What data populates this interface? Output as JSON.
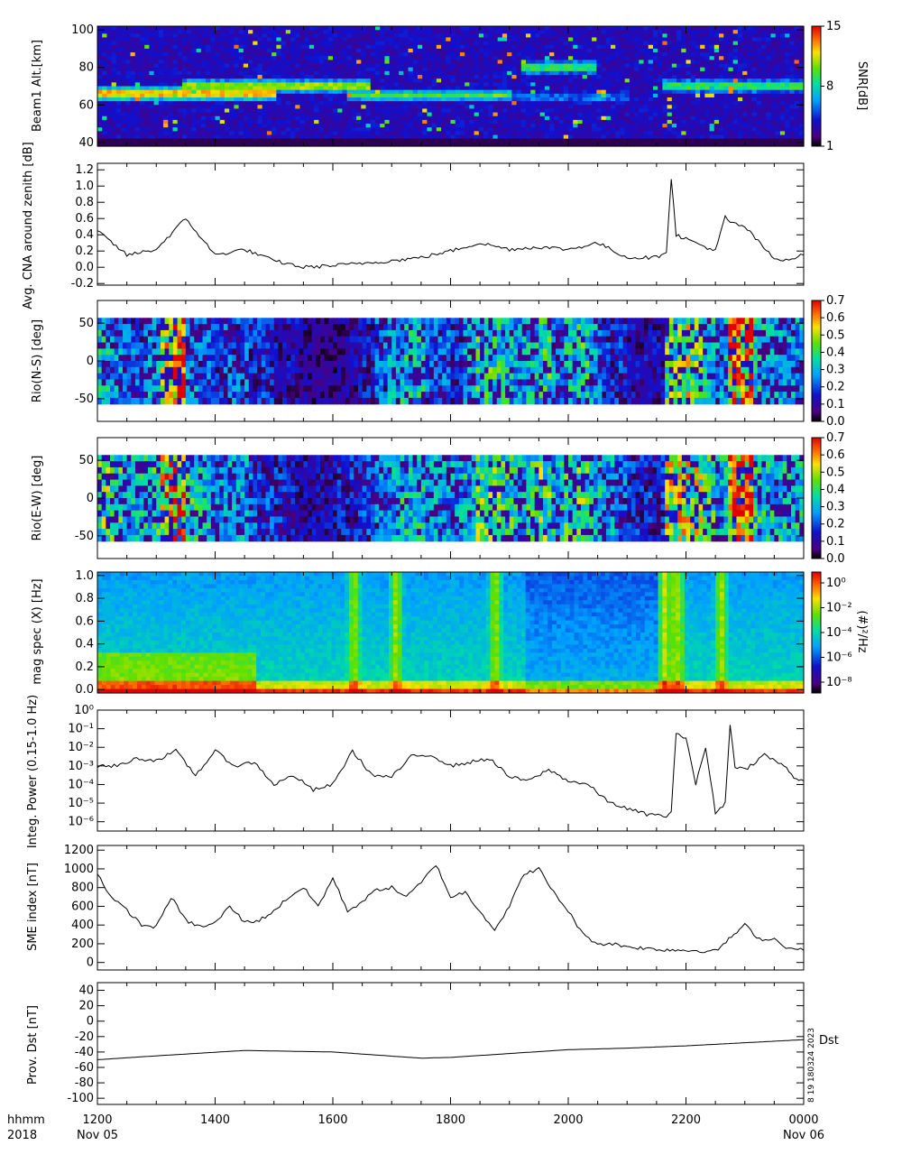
{
  "time_axis": {
    "ticks": [
      "1200",
      "1400",
      "1600",
      "1800",
      "2000",
      "2200",
      "0000"
    ],
    "row_label_1": "hhmm",
    "row_label_2": "2018",
    "start_date": "Nov 05",
    "end_date": "Nov 06"
  },
  "side_note": "8 19 180324 2023",
  "chart_data": [
    {
      "type": "heatmap",
      "ylabel": "Beam1 Alt.[km]",
      "yticks": [
        "100",
        "80",
        "60",
        "40"
      ],
      "ylim": [
        38,
        102
      ],
      "colorbar": {
        "label": "SNR[dB]",
        "ticks": [
          "15",
          "8",
          "1"
        ],
        "range": [
          1,
          15
        ],
        "scale": "linear",
        "colormap": "rainbow"
      },
      "bands": [
        {
          "t_start": 0.0,
          "t_end": 0.25,
          "alt": 66,
          "level": 0.9
        },
        {
          "t_start": 0.12,
          "t_end": 0.38,
          "alt": 70,
          "level": 0.75
        },
        {
          "t_start": 0.35,
          "t_end": 0.58,
          "alt": 65,
          "level": 0.55
        },
        {
          "t_start": 0.58,
          "t_end": 0.75,
          "alt": 64,
          "level": 0.3
        },
        {
          "t_start": 0.8,
          "t_end": 1.0,
          "alt": 70,
          "level": 0.6
        },
        {
          "t_start": 0.6,
          "t_end": 0.7,
          "alt": 80,
          "level": 0.6
        }
      ]
    },
    {
      "type": "line",
      "ylabel": "Avg. CNA around zenith [dB]",
      "ylim": [
        -0.22,
        1.28
      ],
      "yticks": [
        "1.2",
        "1.0",
        "0.8",
        "0.6",
        "0.4",
        "0.2",
        "0.0",
        "-0.2"
      ],
      "series": [
        {
          "x": [
            "1200",
            "1230",
            "1300",
            "1330",
            "1400",
            "1430",
            "1500",
            "1530",
            "1600",
            "1630",
            "1700",
            "1730",
            "1800",
            "1830",
            "1900",
            "1930",
            "2000",
            "2030",
            "2100",
            "2130",
            "2140",
            "2145",
            "2150",
            "2200",
            "2230",
            "2240",
            "2245",
            "2300",
            "2330",
            "2345",
            "2400"
          ],
          "y": [
            0.45,
            0.15,
            0.22,
            0.6,
            0.15,
            0.22,
            0.08,
            0.0,
            0.02,
            0.05,
            0.08,
            0.12,
            0.2,
            0.3,
            0.22,
            0.25,
            0.22,
            0.3,
            0.12,
            0.12,
            0.2,
            1.1,
            0.4,
            0.35,
            0.2,
            0.62,
            0.55,
            0.5,
            0.1,
            0.1,
            0.15
          ]
        }
      ]
    },
    {
      "type": "heatmap",
      "ylabel": "Rio(N-S) [deg]",
      "yticks": [
        "50",
        "0",
        "-50"
      ],
      "ylim": [
        -80,
        80
      ],
      "colorbar": {
        "ticks": [
          "0.7",
          "0.6",
          "0.5",
          "0.4",
          "0.3",
          "0.2",
          "0.1",
          "0.0"
        ],
        "range": [
          0,
          0.7
        ],
        "scale": "linear",
        "colormap": "rainbow"
      },
      "activity": [
        0.35,
        0.3,
        0.25,
        0.25,
        0.3,
        0.55,
        0.7,
        0.3,
        0.25,
        0.2,
        0.25,
        0.25,
        0.2,
        0.2,
        0.15,
        0.15,
        0.12,
        0.1,
        0.1,
        0.12,
        0.15,
        0.18,
        0.25,
        0.3,
        0.35,
        0.35,
        0.25,
        0.25,
        0.2,
        0.3,
        0.4,
        0.4,
        0.35,
        0.3,
        0.35,
        0.4,
        0.3,
        0.35,
        0.4,
        0.3,
        0.2,
        0.2,
        0.15,
        0.15,
        0.15,
        0.45,
        0.5,
        0.45,
        0.35,
        0.3,
        0.7,
        0.65,
        0.35,
        0.3,
        0.3,
        0.3
      ]
    },
    {
      "type": "heatmap",
      "ylabel": "Rio(E-W) [deg]",
      "yticks": [
        "50",
        "0",
        "-50"
      ],
      "ylim": [
        -80,
        80
      ],
      "colorbar": {
        "ticks": [
          "0.7",
          "0.6",
          "0.5",
          "0.4",
          "0.3",
          "0.2",
          "0.1",
          "0.0"
        ],
        "range": [
          0,
          0.7
        ],
        "scale": "linear",
        "colormap": "rainbow"
      },
      "activity": [
        0.45,
        0.4,
        0.35,
        0.35,
        0.4,
        0.6,
        0.7,
        0.4,
        0.35,
        0.3,
        0.3,
        0.3,
        0.25,
        0.22,
        0.2,
        0.18,
        0.15,
        0.15,
        0.15,
        0.18,
        0.2,
        0.22,
        0.28,
        0.3,
        0.35,
        0.35,
        0.3,
        0.3,
        0.3,
        0.35,
        0.45,
        0.45,
        0.4,
        0.35,
        0.4,
        0.45,
        0.35,
        0.4,
        0.45,
        0.35,
        0.3,
        0.25,
        0.2,
        0.2,
        0.2,
        0.55,
        0.55,
        0.5,
        0.4,
        0.35,
        0.7,
        0.7,
        0.4,
        0.35,
        0.35,
        0.35
      ]
    },
    {
      "type": "heatmap",
      "ylabel": "mag spec (X) [Hz]",
      "yticks": [
        "1.0",
        "0.8",
        "0.6",
        "0.4",
        "0.2",
        "0.0"
      ],
      "ylim": [
        -0.03,
        1.03
      ],
      "colorbar": {
        "label": "(#)²/Hz",
        "ticks": [
          "10⁰",
          "10⁻²",
          "10⁻⁴",
          "10⁻⁶",
          "10⁻⁸"
        ],
        "scale": "log",
        "colormap": "rainbow"
      }
    },
    {
      "type": "line",
      "ylabel": "Integ. Power (0.15-1.0 Hz)",
      "yscale": "log",
      "ylim": [
        -6.5,
        0
      ],
      "yticks": [
        "10⁰",
        "10⁻¹",
        "10⁻²",
        "10⁻³",
        "10⁻⁴",
        "10⁻⁵",
        "10⁻⁶"
      ],
      "series": [
        {
          "x": [
            "1200",
            "1220",
            "1240",
            "1300",
            "1320",
            "1340",
            "1400",
            "1420",
            "1440",
            "1500",
            "1520",
            "1540",
            "1600",
            "1620",
            "1640",
            "1700",
            "1720",
            "1740",
            "1800",
            "1820",
            "1840",
            "1900",
            "1920",
            "1940",
            "2000",
            "2020",
            "2040",
            "2100",
            "2120",
            "2140",
            "2145",
            "2150",
            "2155",
            "2200",
            "2210",
            "2220",
            "2230",
            "2240",
            "2245",
            "2250",
            "2300",
            "2320",
            "2340",
            "2350",
            "2400"
          ],
          "y": [
            -3.0,
            -3.0,
            -2.6,
            -2.7,
            -2.2,
            -3.5,
            -2.2,
            -3.0,
            -2.8,
            -4.0,
            -3.5,
            -4.3,
            -4.0,
            -2.2,
            -3.5,
            -3.6,
            -2.5,
            -2.4,
            -3.0,
            -2.8,
            -2.6,
            -3.6,
            -3.8,
            -3.2,
            -3.8,
            -4.0,
            -4.9,
            -5.3,
            -5.6,
            -5.7,
            -5.5,
            -1.2,
            -1.5,
            -1.4,
            -4.0,
            -2.0,
            -5.5,
            -5.0,
            -0.8,
            -3.0,
            -3.2,
            -2.4,
            -3.0,
            -3.6,
            -3.8
          ]
        }
      ]
    },
    {
      "type": "line",
      "ylabel": "SME index [nT]",
      "ylim": [
        -80,
        1250
      ],
      "yticks": [
        "1200",
        "1000",
        "800",
        "600",
        "400",
        "200",
        "0"
      ],
      "series": [
        {
          "x": [
            "1200",
            "1215",
            "1230",
            "1245",
            "1300",
            "1315",
            "1330",
            "1345",
            "1400",
            "1415",
            "1430",
            "1445",
            "1500",
            "1515",
            "1530",
            "1545",
            "1600",
            "1615",
            "1630",
            "1645",
            "1700",
            "1715",
            "1730",
            "1745",
            "1800",
            "1815",
            "1830",
            "1845",
            "1900",
            "1915",
            "1930",
            "1945",
            "2000",
            "2015",
            "2030",
            "2045",
            "2100",
            "2130",
            "2200",
            "2230",
            "2300",
            "2315",
            "2330",
            "2345",
            "2400"
          ],
          "y": [
            950,
            680,
            560,
            400,
            380,
            700,
            450,
            380,
            420,
            600,
            430,
            450,
            550,
            700,
            800,
            600,
            900,
            550,
            650,
            780,
            800,
            700,
            850,
            1050,
            700,
            750,
            550,
            350,
            600,
            950,
            1000,
            750,
            550,
            300,
            200,
            200,
            170,
            140,
            130,
            120,
            400,
            250,
            250,
            150,
            130
          ]
        }
      ]
    },
    {
      "type": "line",
      "ylabel": "Prov. Dst [nT]",
      "ylim": [
        -108,
        50
      ],
      "yticks": [
        "40",
        "20",
        "0",
        "-20",
        "-40",
        "-60",
        "-80",
        "-100"
      ],
      "series": [
        {
          "name": "Dst",
          "x": [
            "1200",
            "1300",
            "1430",
            "1600",
            "1730",
            "1800",
            "1900",
            "2000",
            "2100",
            "2200",
            "2300",
            "2400"
          ],
          "y": [
            -50,
            -45,
            -38,
            -40,
            -48,
            -47,
            -42,
            -37,
            -35,
            -32,
            -28,
            -24
          ]
        }
      ]
    }
  ]
}
